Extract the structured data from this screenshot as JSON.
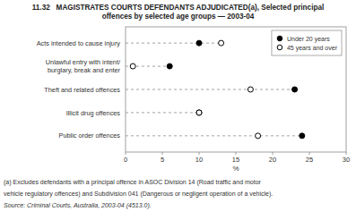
{
  "chart_data": {
    "type": "dot",
    "orientation": "horizontal",
    "title": "11.32   MAGISTRATES COURTS DEFENDANTS ADJUDICATED(a), Selected principal\noffences by selected age groups — 2003-04",
    "categories": [
      "Acts intended to cause injury",
      "Unlawful entry with intent/\nburglary, break and enter",
      "Theft and related offences",
      "Illicit drug offences",
      "Public order offences"
    ],
    "series": [
      {
        "name": "Under 20 years",
        "color": "#000000",
        "marker": "circle",
        "values": [
          10,
          6,
          23,
          10,
          24
        ]
      },
      {
        "name": "45 years and over",
        "color": "#ffffff",
        "marker": "circle",
        "values": [
          13,
          1,
          17,
          10,
          18
        ]
      }
    ],
    "color": "#999999",
    "line_style": "dashed",
    "x_label": "%",
    "xlim": [
      0,
      30
    ],
    "xticks": [
      0,
      5,
      10,
      15,
      20,
      25,
      30
    ],
    "legend": "upper right",
    "grid": false,
    "annotations": [
      "(a) Excludes defendants with a principal offence in ASOC Division 14 (Road traffic and motor",
      "vehicle regulatory offences) and Subdivision 041 (Dangerous or negligent operation of a vehicle).",
      "Source: Criminal Courts, Australia, 2003-04 (4513.0)."
    ]
  }
}
